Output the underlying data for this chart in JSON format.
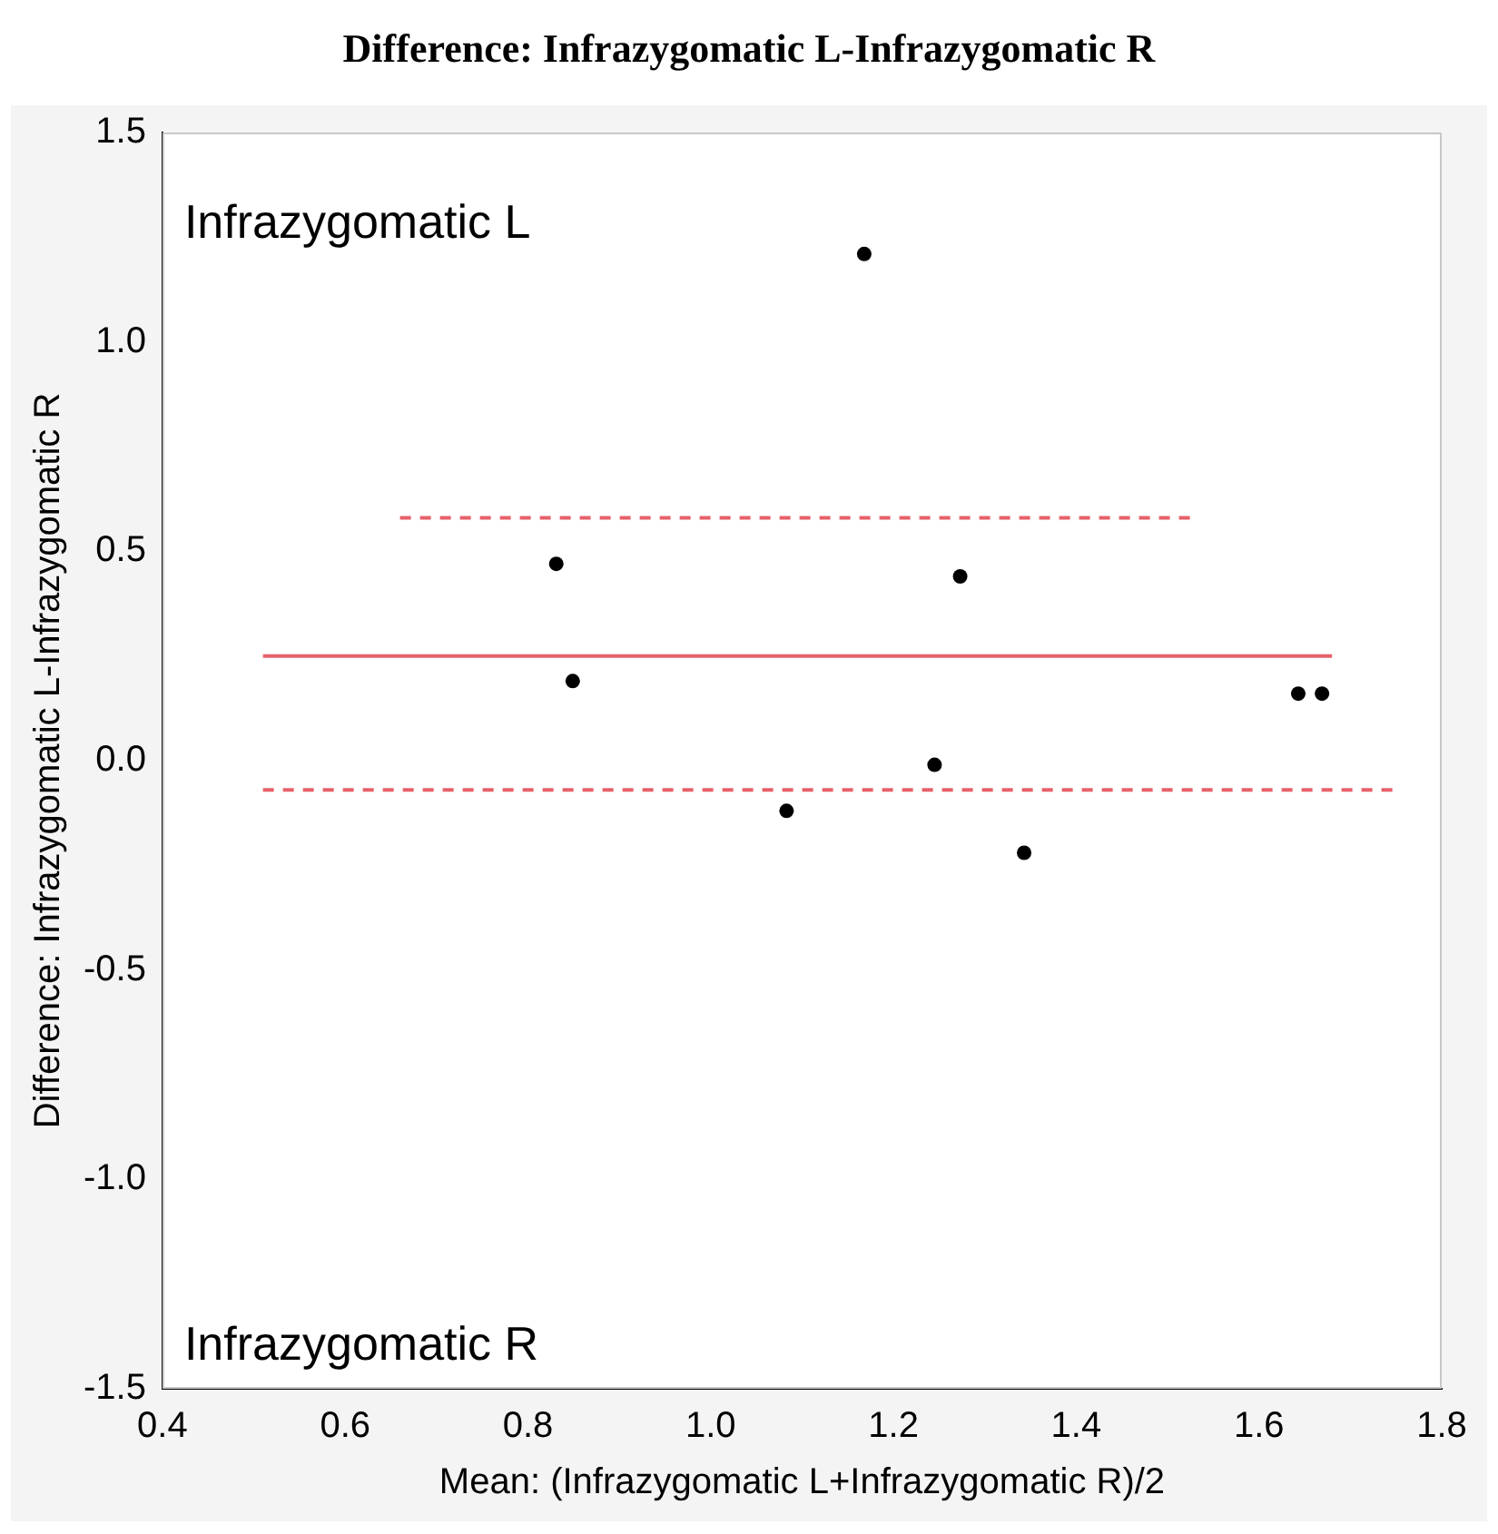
{
  "chart_data": {
    "type": "scatter",
    "title": "Difference: Infrazygomatic L-Infrazygomatic R",
    "xlabel": "Mean: (Infrazygomatic L+Infrazygomatic R)/2",
    "ylabel": "Difference: Infrazygomatic L-Infrazygomatic R",
    "annotations": [
      "Infrazygomatic L",
      "Infrazygomatic R"
    ],
    "series": [
      {
        "type": "scatter",
        "color": "#000000",
        "marker": "circle",
        "x": [
          1.168,
          0.831,
          0.849,
          1.273,
          1.083,
          1.245,
          1.343,
          1.643,
          1.669
        ],
        "values": [
          1.21,
          0.47,
          0.19,
          0.44,
          -0.12,
          -0.01,
          -0.22,
          0.16,
          0.16
        ]
      },
      {
        "type": "line",
        "color": "#e8606a",
        "line_style": "solid",
        "marker": "none",
        "x": [
          0.51,
          1.68
        ],
        "values": [
          0.25,
          0.25
        ]
      },
      {
        "type": "line",
        "color": "#e8606a",
        "line_style": "dashed",
        "marker": "none",
        "x": [
          0.66,
          1.53
        ],
        "values": [
          0.58,
          0.58
        ]
      },
      {
        "type": "line",
        "color": "#e8606a",
        "line_style": "dashed",
        "marker": "none",
        "x": [
          0.51,
          1.75
        ],
        "values": [
          -0.07,
          -0.07
        ]
      }
    ],
    "xlim": [
      0.4,
      1.8
    ],
    "xticks": [
      0.4,
      0.6,
      0.8,
      {
        "value": 1,
        "label": "1.0"
      },
      1.2,
      1.4,
      1.6,
      1.8
    ],
    "ylim": [
      -1.5,
      1.5
    ],
    "yticks": [
      {
        "value": 1.5,
        "label": "1.5"
      },
      {
        "value": 1,
        "label": "1.0"
      },
      {
        "value": 0.5,
        "label": "0.5"
      },
      {
        "value": 0,
        "label": "0.0"
      },
      {
        "value": -0.5,
        "label": "-0.5"
      },
      {
        "value": -1,
        "label": "-1.0"
      },
      {
        "value": -1.5,
        "label": "-1.5"
      }
    ],
    "grid": false,
    "legend": false
  }
}
